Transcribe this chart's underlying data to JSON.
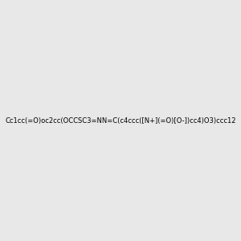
{
  "smiles": "Cc1cc(=O)oc2cc(OCCSC3=NN=C(c4ccc([N+](=O)[O-])cc4)O3)ccc12",
  "title": "",
  "bg_color": "#e8e8e8",
  "fig_width": 3.0,
  "fig_height": 3.0,
  "dpi": 100
}
